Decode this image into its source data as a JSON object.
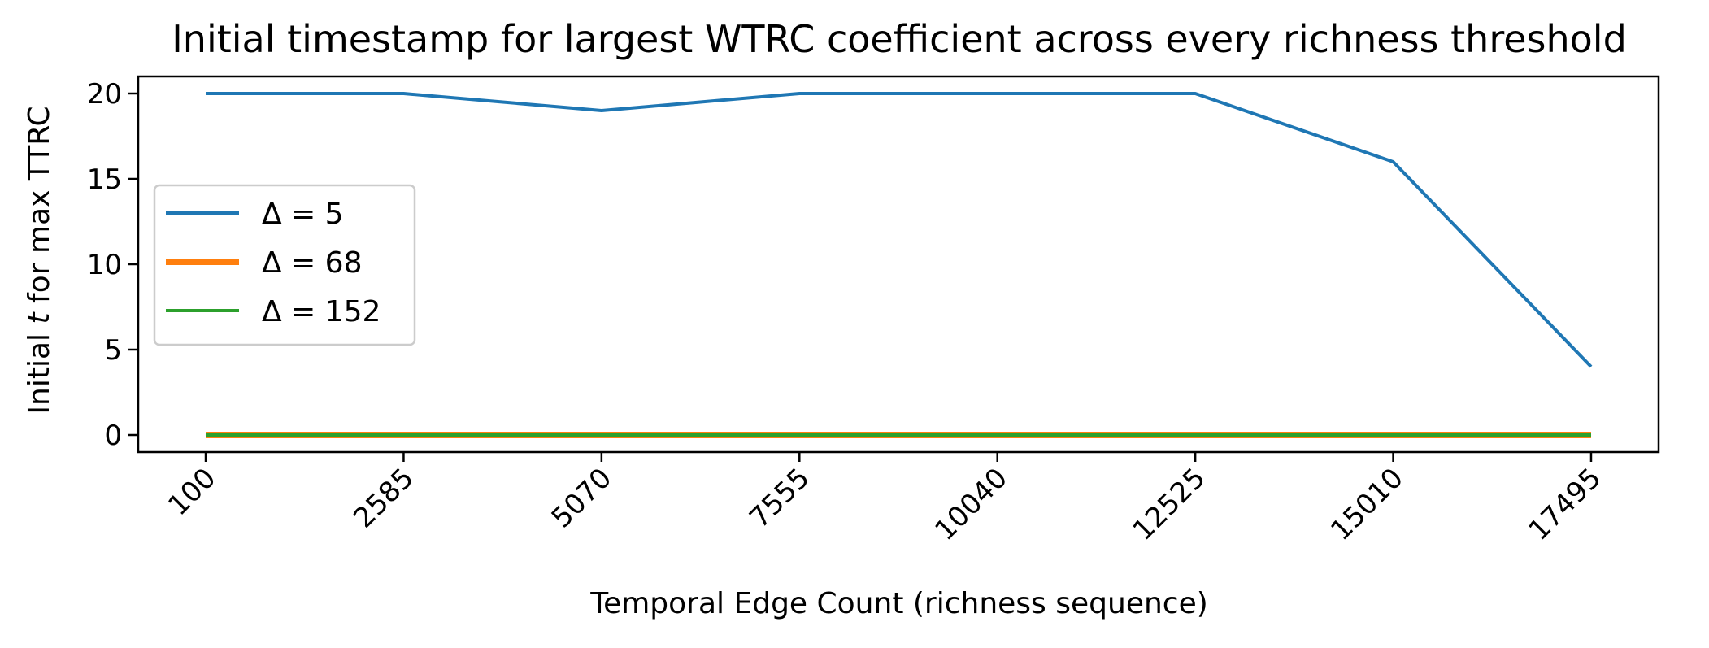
{
  "chart_data": {
    "type": "line",
    "title": "Initial timestamp for largest WTRC coefficient across every richness threshold",
    "xlabel": "Temporal Edge Count (richness sequence)",
    "ylabel_parts": [
      "Initial ",
      "t",
      " for max TTRC"
    ],
    "x": [
      100,
      2585,
      5070,
      7555,
      10040,
      12525,
      15010,
      17495
    ],
    "x_tick_labels": [
      "100",
      "2585",
      "5070",
      "7555",
      "10040",
      "12525",
      "15010",
      "17495"
    ],
    "y_ticks": [
      0,
      5,
      10,
      15,
      20
    ],
    "y_tick_labels": [
      "0",
      "5",
      "10",
      "15",
      "20"
    ],
    "xlim": [
      -747.5,
      18342.5
    ],
    "ylim": [
      -1,
      21
    ],
    "grid": false,
    "legend_position": "center-left",
    "series": [
      {
        "name": "Δ = 5",
        "color": "#1f77b4",
        "values": [
          20,
          20,
          19,
          20,
          20,
          20,
          16,
          4
        ]
      },
      {
        "name": "Δ = 68",
        "color": "#ff7f0e",
        "values": [
          0,
          0,
          0,
          0,
          0,
          0,
          0,
          0
        ]
      },
      {
        "name": "Δ = 152",
        "color": "#2ca02c",
        "values": [
          0,
          0,
          0,
          0,
          0,
          0,
          0,
          0
        ]
      }
    ]
  }
}
